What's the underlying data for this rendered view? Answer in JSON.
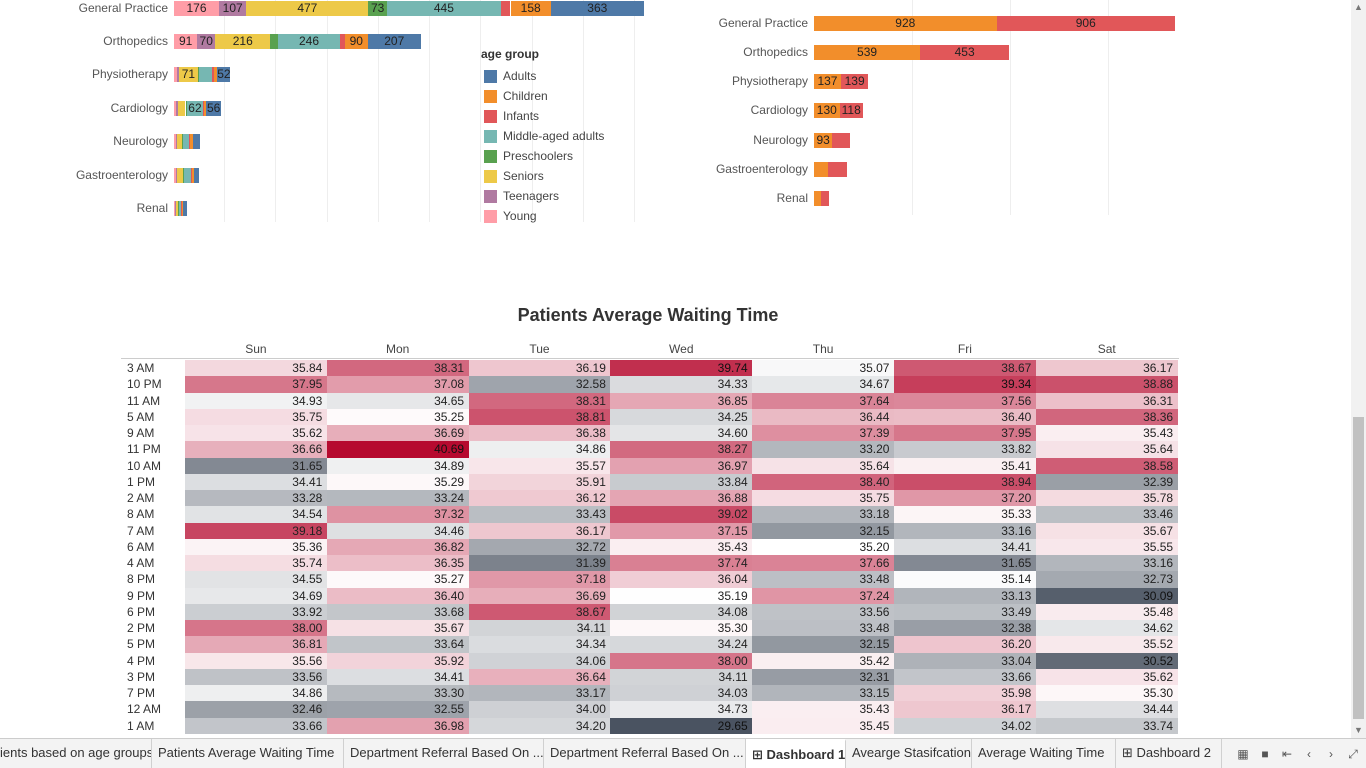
{
  "chart_data": [
    {
      "type": "bar",
      "stacked": true,
      "orientation": "horizontal",
      "categories": [
        "General Practice",
        "Orthopedics",
        "Physiotherapy",
        "Cardiology",
        "Neurology",
        "Gastroenterology",
        "Renal"
      ],
      "series": [
        {
          "name": "Young",
          "color": "#ff9da7",
          "values": [
            176,
            91,
            12,
            9,
            6,
            6,
            3
          ]
        },
        {
          "name": "Teenagers",
          "color": "#b07aa1",
          "values": [
            107,
            70,
            9,
            6,
            4,
            4,
            3
          ]
        },
        {
          "name": "Seniors",
          "color": "#edc948",
          "values": [
            477,
            216,
            71,
            30,
            20,
            24,
            8
          ]
        },
        {
          "name": "Preschoolers",
          "color": "#59a14f",
          "values": [
            73,
            28,
            6,
            6,
            4,
            4,
            3
          ]
        },
        {
          "name": "Middle-aged adults",
          "color": "#76b7b2",
          "values": [
            445,
            246,
            52,
            62,
            25,
            30,
            8
          ]
        },
        {
          "name": "Infants",
          "color": "#e15759",
          "values": [
            38,
            17,
            5,
            4,
            4,
            4,
            3
          ]
        },
        {
          "name": "Children",
          "color": "#f28e2b",
          "values": [
            158,
            90,
            14,
            10,
            11,
            6,
            3
          ]
        },
        {
          "name": "Adults",
          "color": "#4e79a7",
          "values": [
            363,
            207,
            52,
            56,
            28,
            20,
            17
          ]
        }
      ],
      "labels_shown": {
        "General Practice": [
          176,
          107,
          477,
          73,
          445,
          null,
          158,
          363
        ],
        "Orthopedics": [
          91,
          70,
          216,
          null,
          246,
          null,
          90,
          207
        ],
        "Physiotherapy": [
          null,
          null,
          71,
          null,
          null,
          null,
          null,
          52
        ],
        "Cardiology": [
          null,
          null,
          null,
          null,
          62,
          null,
          null,
          56
        ]
      },
      "legend": {
        "title": "age group",
        "items": [
          "Adults",
          "Children",
          "Infants",
          "Middle-aged adults",
          "Preschoolers",
          "Seniors",
          "Teenagers",
          "Young"
        ],
        "placement": "right"
      }
    },
    {
      "type": "bar",
      "stacked": true,
      "orientation": "horizontal",
      "categories": [
        "General Practice",
        "Orthopedics",
        "Physiotherapy",
        "Cardiology",
        "Neurology",
        "Gastroenterology",
        "Renal"
      ],
      "series": [
        {
          "name": "Children",
          "color": "#f28e2b",
          "values": [
            928,
            539,
            137,
            130,
            93,
            70,
            35
          ]
        },
        {
          "name": "Infants",
          "color": "#e15759",
          "values": [
            906,
            453,
            139,
            118,
            92,
            100,
            40
          ]
        }
      ],
      "show_labels": [
        [
          true,
          true
        ],
        [
          true,
          true
        ],
        [
          true,
          true
        ],
        [
          true,
          true
        ],
        [
          true,
          false
        ],
        [
          false,
          false
        ],
        [
          false,
          false
        ]
      ]
    },
    {
      "type": "heatmap",
      "title": "Patients Average Waiting Time",
      "columns": [
        "Sun",
        "Mon",
        "Tue",
        "Wed",
        "Thu",
        "Fri",
        "Sat"
      ],
      "rows": [
        "3 AM",
        "10 PM",
        "11 AM",
        "5 AM",
        "9 AM",
        "11 PM",
        "10 AM",
        "1 PM",
        "2 AM",
        "8 AM",
        "7 AM",
        "6 AM",
        "4 AM",
        "8 PM",
        "9 PM",
        "6 PM",
        "2 PM",
        "5 PM",
        "4 PM",
        "3 PM",
        "7 PM",
        "12 AM",
        "1 AM"
      ],
      "values": [
        [
          35.84,
          38.31,
          36.19,
          39.74,
          35.07,
          38.67,
          36.17
        ],
        [
          37.95,
          37.08,
          32.58,
          34.33,
          34.67,
          39.34,
          38.88
        ],
        [
          34.93,
          34.65,
          38.31,
          36.85,
          37.64,
          37.56,
          36.31
        ],
        [
          35.75,
          35.25,
          38.81,
          34.25,
          36.44,
          36.4,
          38.36
        ],
        [
          35.62,
          36.69,
          36.38,
          34.6,
          37.39,
          37.95,
          35.43
        ],
        [
          36.66,
          40.69,
          34.86,
          38.27,
          33.2,
          33.82,
          35.64
        ],
        [
          31.65,
          34.89,
          35.57,
          36.97,
          35.64,
          35.41,
          38.58
        ],
        [
          34.41,
          35.29,
          35.91,
          33.84,
          38.4,
          38.94,
          32.39
        ],
        [
          33.28,
          33.24,
          36.12,
          36.88,
          35.75,
          37.2,
          35.78
        ],
        [
          34.54,
          37.32,
          33.43,
          39.02,
          33.18,
          35.33,
          33.46
        ],
        [
          39.18,
          34.46,
          36.17,
          37.15,
          32.15,
          33.16,
          35.67
        ],
        [
          35.36,
          36.82,
          32.72,
          35.43,
          35.2,
          34.41,
          35.55
        ],
        [
          35.74,
          36.35,
          31.39,
          37.74,
          37.66,
          31.65,
          33.16
        ],
        [
          34.55,
          35.27,
          37.18,
          36.04,
          33.48,
          35.14,
          32.73
        ],
        [
          34.69,
          36.4,
          36.69,
          35.19,
          37.24,
          33.13,
          30.09
        ],
        [
          33.92,
          33.68,
          38.67,
          34.08,
          33.56,
          33.49,
          35.48
        ],
        [
          38.0,
          35.67,
          34.11,
          35.3,
          33.48,
          32.38,
          34.62
        ],
        [
          36.81,
          33.64,
          34.34,
          34.24,
          32.15,
          36.2,
          35.52
        ],
        [
          35.56,
          35.92,
          34.06,
          38.0,
          35.42,
          33.04,
          30.52
        ],
        [
          33.56,
          34.41,
          36.64,
          34.11,
          32.31,
          33.66,
          35.62
        ],
        [
          34.86,
          33.3,
          33.17,
          34.03,
          33.15,
          35.98,
          35.3
        ],
        [
          32.46,
          32.55,
          34.0,
          34.73,
          35.43,
          36.17,
          34.44
        ],
        [
          33.66,
          36.98,
          34.2,
          29.65,
          35.45,
          34.02,
          33.74
        ]
      ],
      "color_scale": {
        "low": "#4a5361",
        "mid": "#ffffff",
        "high": "#b60a2f",
        "midpoint": 35.2,
        "range": [
          29.65,
          40.69
        ]
      }
    }
  ],
  "tabs": [
    {
      "label": "ients based on age groups",
      "active": false,
      "icon": false
    },
    {
      "label": "Patients Average Waiting Time",
      "active": false,
      "icon": false
    },
    {
      "label": "Department Referral Based On ...",
      "active": false,
      "icon": false
    },
    {
      "label": "Department Referral Based On ...",
      "active": false,
      "icon": false
    },
    {
      "label": "Dashboard 1",
      "active": true,
      "icon": true
    },
    {
      "label": "Avearge Stasifcation",
      "active": false,
      "icon": false
    },
    {
      "label": "Average Waiting Time",
      "active": false,
      "icon": false
    },
    {
      "label": "Dashboard 2",
      "active": false,
      "icon": true
    }
  ],
  "controls": [
    "grid-view-icon",
    "sheet-view-icon",
    "first-page-icon",
    "prev-page-icon",
    "next-page-icon",
    "fullscreen-icon",
    "show-sheets-icon"
  ]
}
